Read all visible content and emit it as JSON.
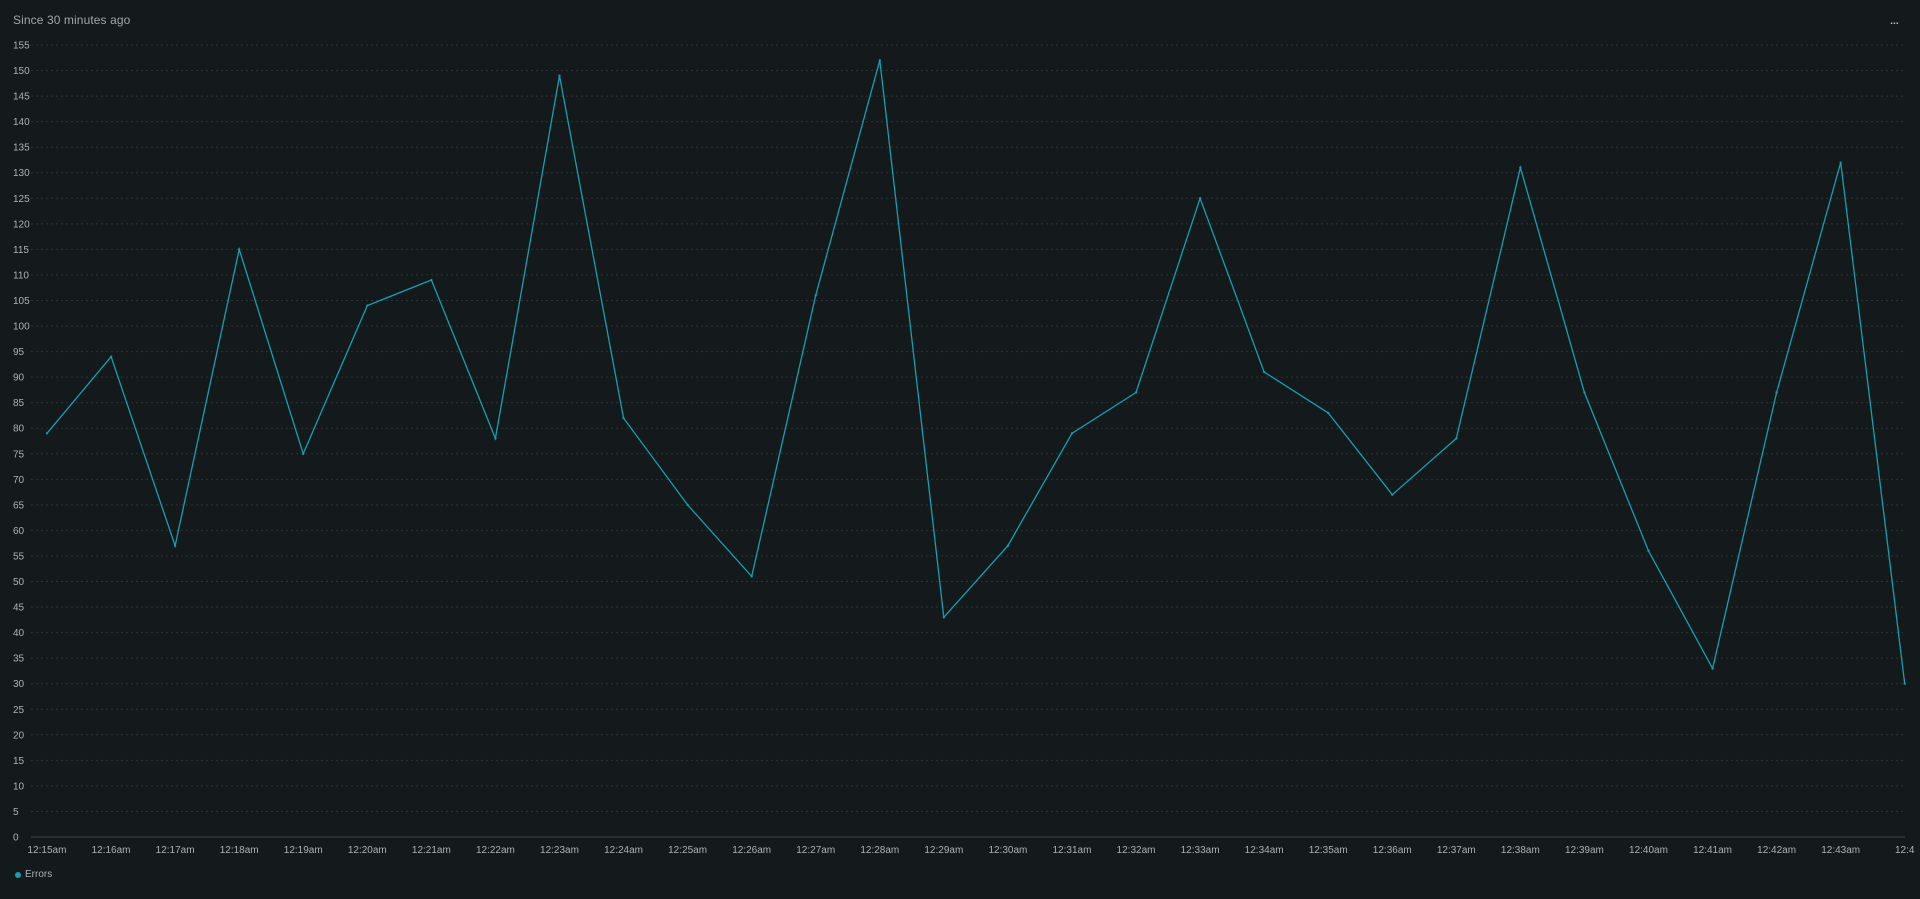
{
  "header": {
    "subtitle": "Since 30 minutes ago",
    "menu_label": "..."
  },
  "colors": {
    "background": "#141a1c",
    "series": "#11a1b2",
    "grid": "#2b3437",
    "axis": "#3a4447",
    "text": "#aab2b5"
  },
  "chart_data": {
    "type": "line",
    "title": "",
    "subtitle": "Since 30 minutes ago",
    "xlabel": "",
    "ylabel": "",
    "ylim": [
      0,
      155
    ],
    "yticks": [
      0,
      5,
      10,
      15,
      20,
      25,
      30,
      35,
      40,
      45,
      50,
      55,
      60,
      65,
      70,
      75,
      80,
      85,
      90,
      95,
      100,
      105,
      110,
      115,
      120,
      125,
      130,
      135,
      140,
      145,
      150,
      155
    ],
    "categories": [
      "12:15am",
      "12:16am",
      "12:17am",
      "12:18am",
      "12:19am",
      "12:20am",
      "12:21am",
      "12:22am",
      "12:23am",
      "12:24am",
      "12:25am",
      "12:26am",
      "12:27am",
      "12:28am",
      "12:29am",
      "12:30am",
      "12:31am",
      "12:32am",
      "12:33am",
      "12:34am",
      "12:35am",
      "12:36am",
      "12:37am",
      "12:38am",
      "12:39am",
      "12:40am",
      "12:41am",
      "12:42am",
      "12:43am",
      "12:4"
    ],
    "grid": true,
    "legend_position": "bottom-left",
    "series": [
      {
        "name": "Errors",
        "color": "#11a1b2",
        "values": [
          79,
          94,
          57,
          115,
          75,
          104,
          109,
          78,
          149,
          82,
          65,
          51,
          106,
          152,
          43,
          57,
          79,
          87,
          125,
          91,
          83,
          67,
          78,
          131,
          87,
          56,
          33,
          87,
          132,
          30
        ]
      }
    ]
  }
}
